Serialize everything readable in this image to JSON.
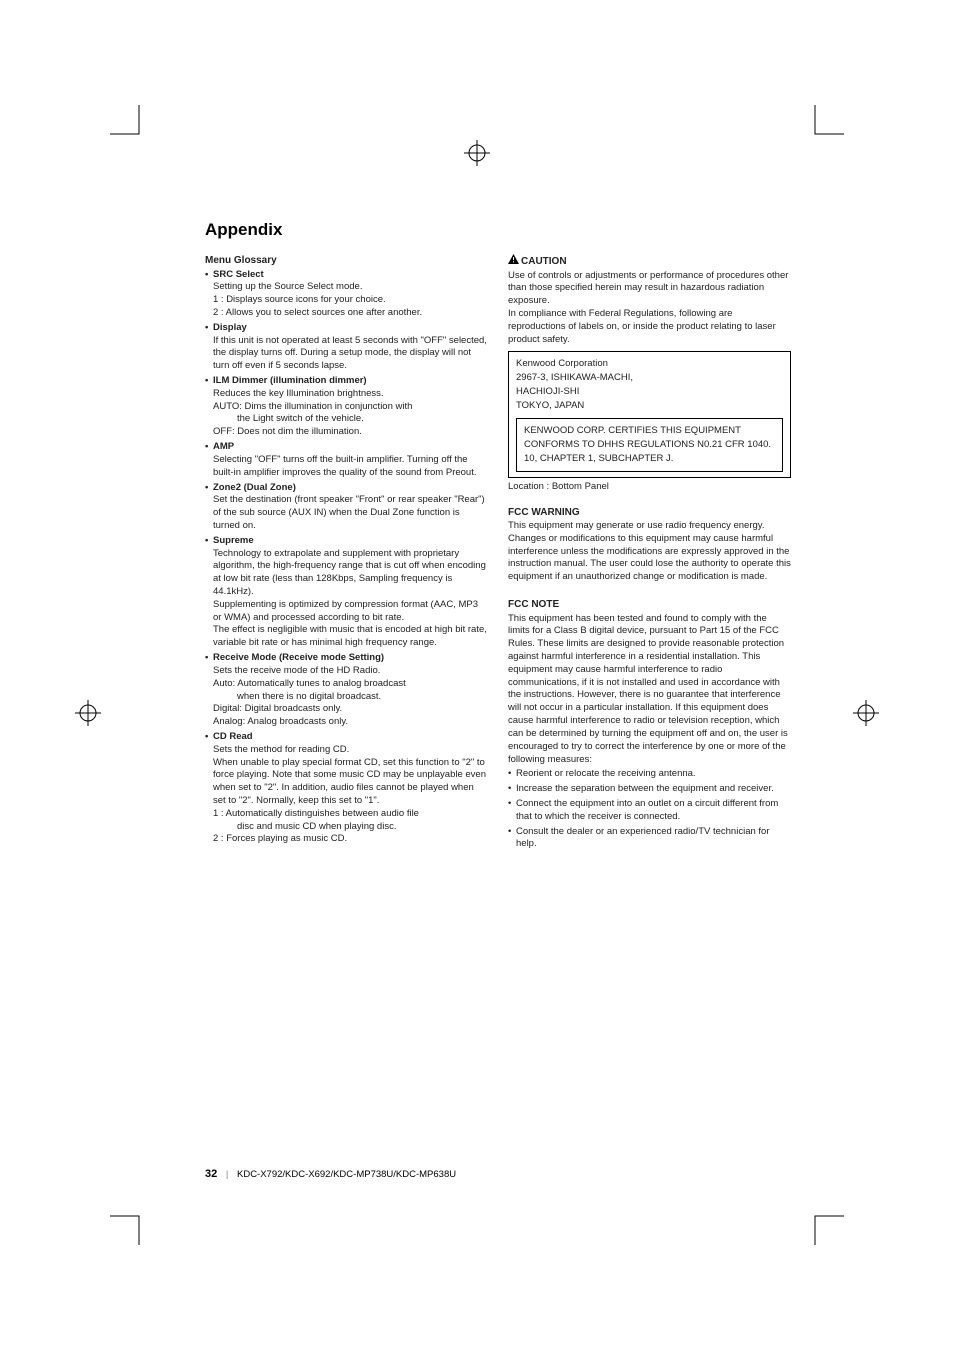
{
  "page": {
    "section_title": "Appendix",
    "page_number": "32",
    "models": "KDC-X792/KDC-X692/KDC-MP738U/KDC-MP638U"
  },
  "left_col": {
    "heading": "Menu Glossary",
    "items": [
      {
        "title": "SRC Select",
        "lines": [
          "Setting up the Source Select mode.",
          "1 : Displays source icons for your choice.",
          "2 : Allows you to select sources one after another."
        ]
      },
      {
        "title": "Display",
        "lines": [
          "If this unit is not operated at least 5 seconds with \"OFF\" selected, the display turns off. During a setup mode, the display will not turn off even if 5 seconds lapse."
        ]
      },
      {
        "title": "ILM Dimmer (illumination dimmer)",
        "lines": [
          "Reduces the key Illumination brightness.",
          "AUTO: Dims the illumination in conjunction with"
        ],
        "sub": "the Light switch of the vehicle.",
        "tail": [
          "OFF: Does not dim the illumination."
        ]
      },
      {
        "title": "AMP",
        "lines": [
          "Selecting \"OFF\" turns off the built-in amplifier. Turning off the built-in amplifier improves the quality of the sound from Preout."
        ]
      },
      {
        "title": "Zone2 (Dual Zone)",
        "lines": [
          "Set the destination (front speaker \"Front\" or rear speaker \"Rear\") of the sub source (AUX IN) when the Dual Zone function is turned on."
        ]
      },
      {
        "title": "Supreme",
        "lines": [
          "Technology to extrapolate and supplement with proprietary algorithm, the high-frequency range that is cut off when encoding at low bit rate (less than 128Kbps, Sampling frequency is 44.1kHz).",
          "Supplementing is optimized by compression format (AAC, MP3 or WMA) and processed according to bit rate.",
          "The effect is negligible with music that is encoded at high bit rate, variable bit rate or has minimal high frequency range."
        ]
      },
      {
        "title": "Receive Mode (Receive mode Setting)",
        "lines": [
          "Sets the receive mode of the HD Radio.",
          "Auto: Automatically tunes to analog broadcast"
        ],
        "sub": "when there is no digital broadcast.",
        "tail": [
          "Digital: Digital broadcasts only.",
          "Analog: Analog broadcasts only."
        ]
      },
      {
        "title": "CD Read",
        "lines": [
          "Sets the method for reading CD.",
          "When unable to play special format CD, set this function to \"2\" to force playing. Note that some music CD may be unplayable even when set to \"2\". In addition, audio files cannot be played when set to \"2\". Normally, keep this set to \"1\".",
          "1 : Automatically distinguishes between audio file"
        ],
        "sub": "disc and music CD when playing disc.",
        "tail": [
          "2 : Forces playing as music CD."
        ]
      }
    ]
  },
  "right_col": {
    "caution_label": "CAUTION",
    "caution_body": "Use of controls or adjustments or performance of procedures other than those specified herein may result in hazardous radiation exposure.\nIn compliance with Federal Regulations, following are reproductions of labels on, or inside the product relating to laser product safety.",
    "box_outer": [
      "Kenwood Corporation",
      "2967-3, ISHIKAWA-MACHI,",
      "HACHIOJI-SHI",
      "TOKYO, JAPAN"
    ],
    "box_inner": "KENWOOD CORP. CERTIFIES THIS EQUIPMENT CONFORMS TO DHHS REGULATIONS N0.21 CFR 1040. 10, CHAPTER 1, SUBCHAPTER J.",
    "location": "Location : Bottom Panel",
    "fcc_warning": {
      "title": "FCC WARNING",
      "body": "This equipment may generate or use radio frequency energy. Changes or modifications to this equipment may cause harmful interference unless the modifications are expressly approved in the instruction manual. The user could lose the authority to operate this equipment if an unauthorized change or modification is made."
    },
    "fcc_note": {
      "title": "FCC NOTE",
      "body": "This equipment has been tested and found to comply with the limits for a Class B digital device, pursuant to Part 15 of the FCC Rules.  These limits are designed to provide reasonable protection against harmful interference in a residential installation.  This equipment may cause harmful interference to radio communications, if it is not installed and used in accordance with the instructions.  However, there is no guarantee that interference will not occur in a particular installation.  If this equipment does cause harmful interference to radio or television reception, which can be determined by turning the equipment off and on, the user is encouraged to try to correct the interference by one or more of the following measures:",
      "bullets": [
        "Reorient or relocate the receiving antenna.",
        "Increase the separation between the equipment and receiver.",
        "Connect the equipment into an outlet on a circuit different from that to which the receiver is connected.",
        "Consult the dealer or an experienced radio/TV technician for help."
      ]
    }
  }
}
